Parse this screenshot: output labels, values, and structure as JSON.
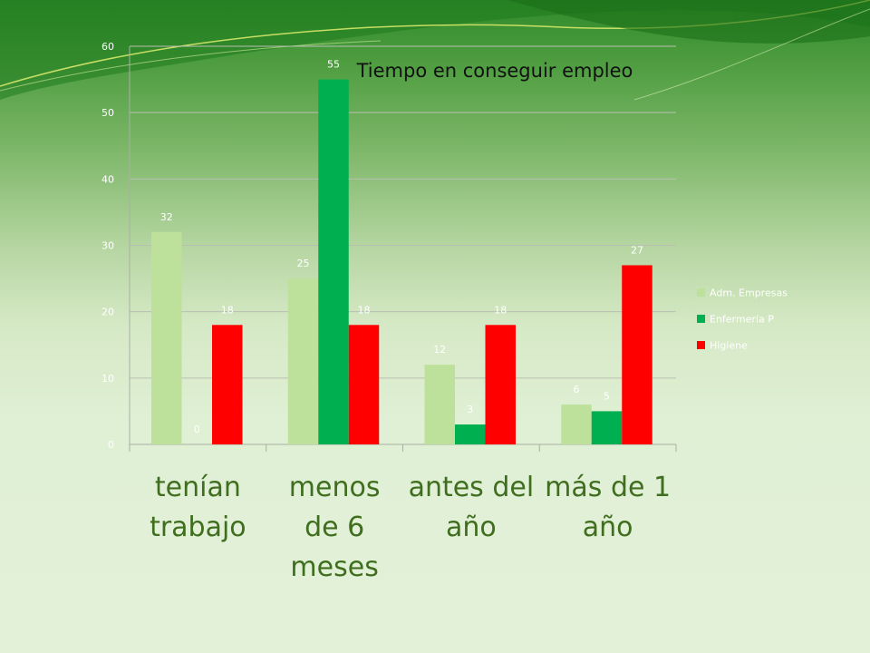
{
  "chart_data": {
    "type": "bar",
    "title": "Tiempo en conseguir empleo",
    "categories": [
      "tenían trabajo",
      "menos de 6 meses",
      "antes del año",
      "más de 1 año"
    ],
    "series": [
      {
        "name": "Adm. Empresas",
        "values": [
          32,
          25,
          12,
          6
        ],
        "color": "#bde19a"
      },
      {
        "name": "Enfermería P",
        "values": [
          0,
          55,
          3,
          5
        ],
        "color": "#00b050"
      },
      {
        "name": "Higiene",
        "values": [
          18,
          18,
          18,
          27
        ],
        "color": "#ff0000"
      }
    ],
    "ylim": [
      0,
      60
    ],
    "yticks": [
      0,
      10,
      20,
      30,
      40,
      50,
      60
    ],
    "grid": true,
    "legend_position": "right"
  },
  "category_lines": [
    "tenían\ntrabajo",
    "menos\nde 6\nmeses",
    "antes del\naño",
    "más de 1\naño"
  ]
}
